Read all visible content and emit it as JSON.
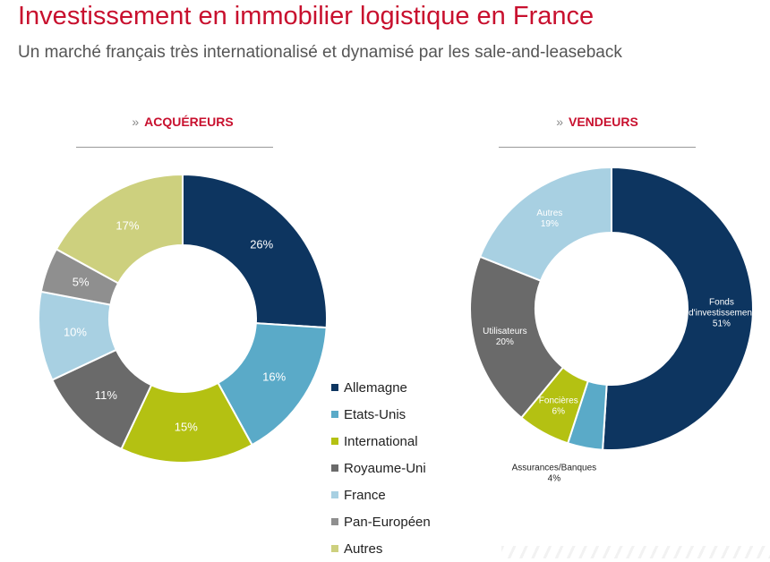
{
  "header": {
    "title": "Investissement en immobilier logistique en France",
    "subtitle": "Un marché français très internationalisé et dynamisé par les sale-and-leaseback"
  },
  "colors": {
    "accent": "#c8102e",
    "rule": "#999999"
  },
  "panels": {
    "left": {
      "chevron": "»",
      "heading": "ACQUÉREURS"
    },
    "right": {
      "chevron": "»",
      "heading": "VENDEURS"
    }
  },
  "chart_data": [
    {
      "type": "pie",
      "donut": true,
      "title": "ACQUÉREURS",
      "slices": [
        {
          "label": "Allemagne",
          "value": 26,
          "display": "26%",
          "color": "#0d3560",
          "text_color": "#ffffff"
        },
        {
          "label": "Etats-Unis",
          "value": 16,
          "display": "16%",
          "color": "#5aaac8",
          "text_color": "#ffffff"
        },
        {
          "label": "International",
          "value": 15,
          "display": "15%",
          "color": "#b4c112",
          "text_color": "#ffffff"
        },
        {
          "label": "Royaume-Uni",
          "value": 11,
          "display": "11%",
          "color": "#6a6a6a",
          "text_color": "#ffffff"
        },
        {
          "label": "France",
          "value": 10,
          "display": "10%",
          "color": "#a8d0e2",
          "text_color": "#ffffff"
        },
        {
          "label": "Pan-Européen",
          "value": 5,
          "display": "5%",
          "color": "#8f8f8f",
          "text_color": "#ffffff"
        },
        {
          "label": "Autres",
          "value": 17,
          "display": "17%",
          "color": "#cdd07e",
          "text_color": "#ffffff"
        }
      ],
      "legend": "right-bottom"
    },
    {
      "type": "pie",
      "donut": true,
      "title": "VENDEURS",
      "slices": [
        {
          "label": "Fonds d'investissement",
          "lines": [
            "Fonds",
            "d'investissement",
            "51%"
          ],
          "value": 51,
          "color": "#0d3560",
          "text_color": "#ffffff"
        },
        {
          "label": "Assurances/Banques",
          "lines": [
            "Assurances/Banques",
            "4%"
          ],
          "value": 4,
          "color": "#5aaac8",
          "text_color": "#222222",
          "outside": true
        },
        {
          "label": "Foncières",
          "lines": [
            "Foncières",
            "6%"
          ],
          "value": 6,
          "color": "#b4c112",
          "text_color": "#ffffff"
        },
        {
          "label": "Utilisateurs",
          "lines": [
            "Utilisateurs",
            "20%"
          ],
          "value": 20,
          "color": "#6a6a6a",
          "text_color": "#ffffff"
        },
        {
          "label": "Autres",
          "lines": [
            "Autres",
            "19%"
          ],
          "value": 19,
          "color": "#a8d0e2",
          "text_color": "#ffffff"
        }
      ],
      "legend": "none"
    }
  ]
}
